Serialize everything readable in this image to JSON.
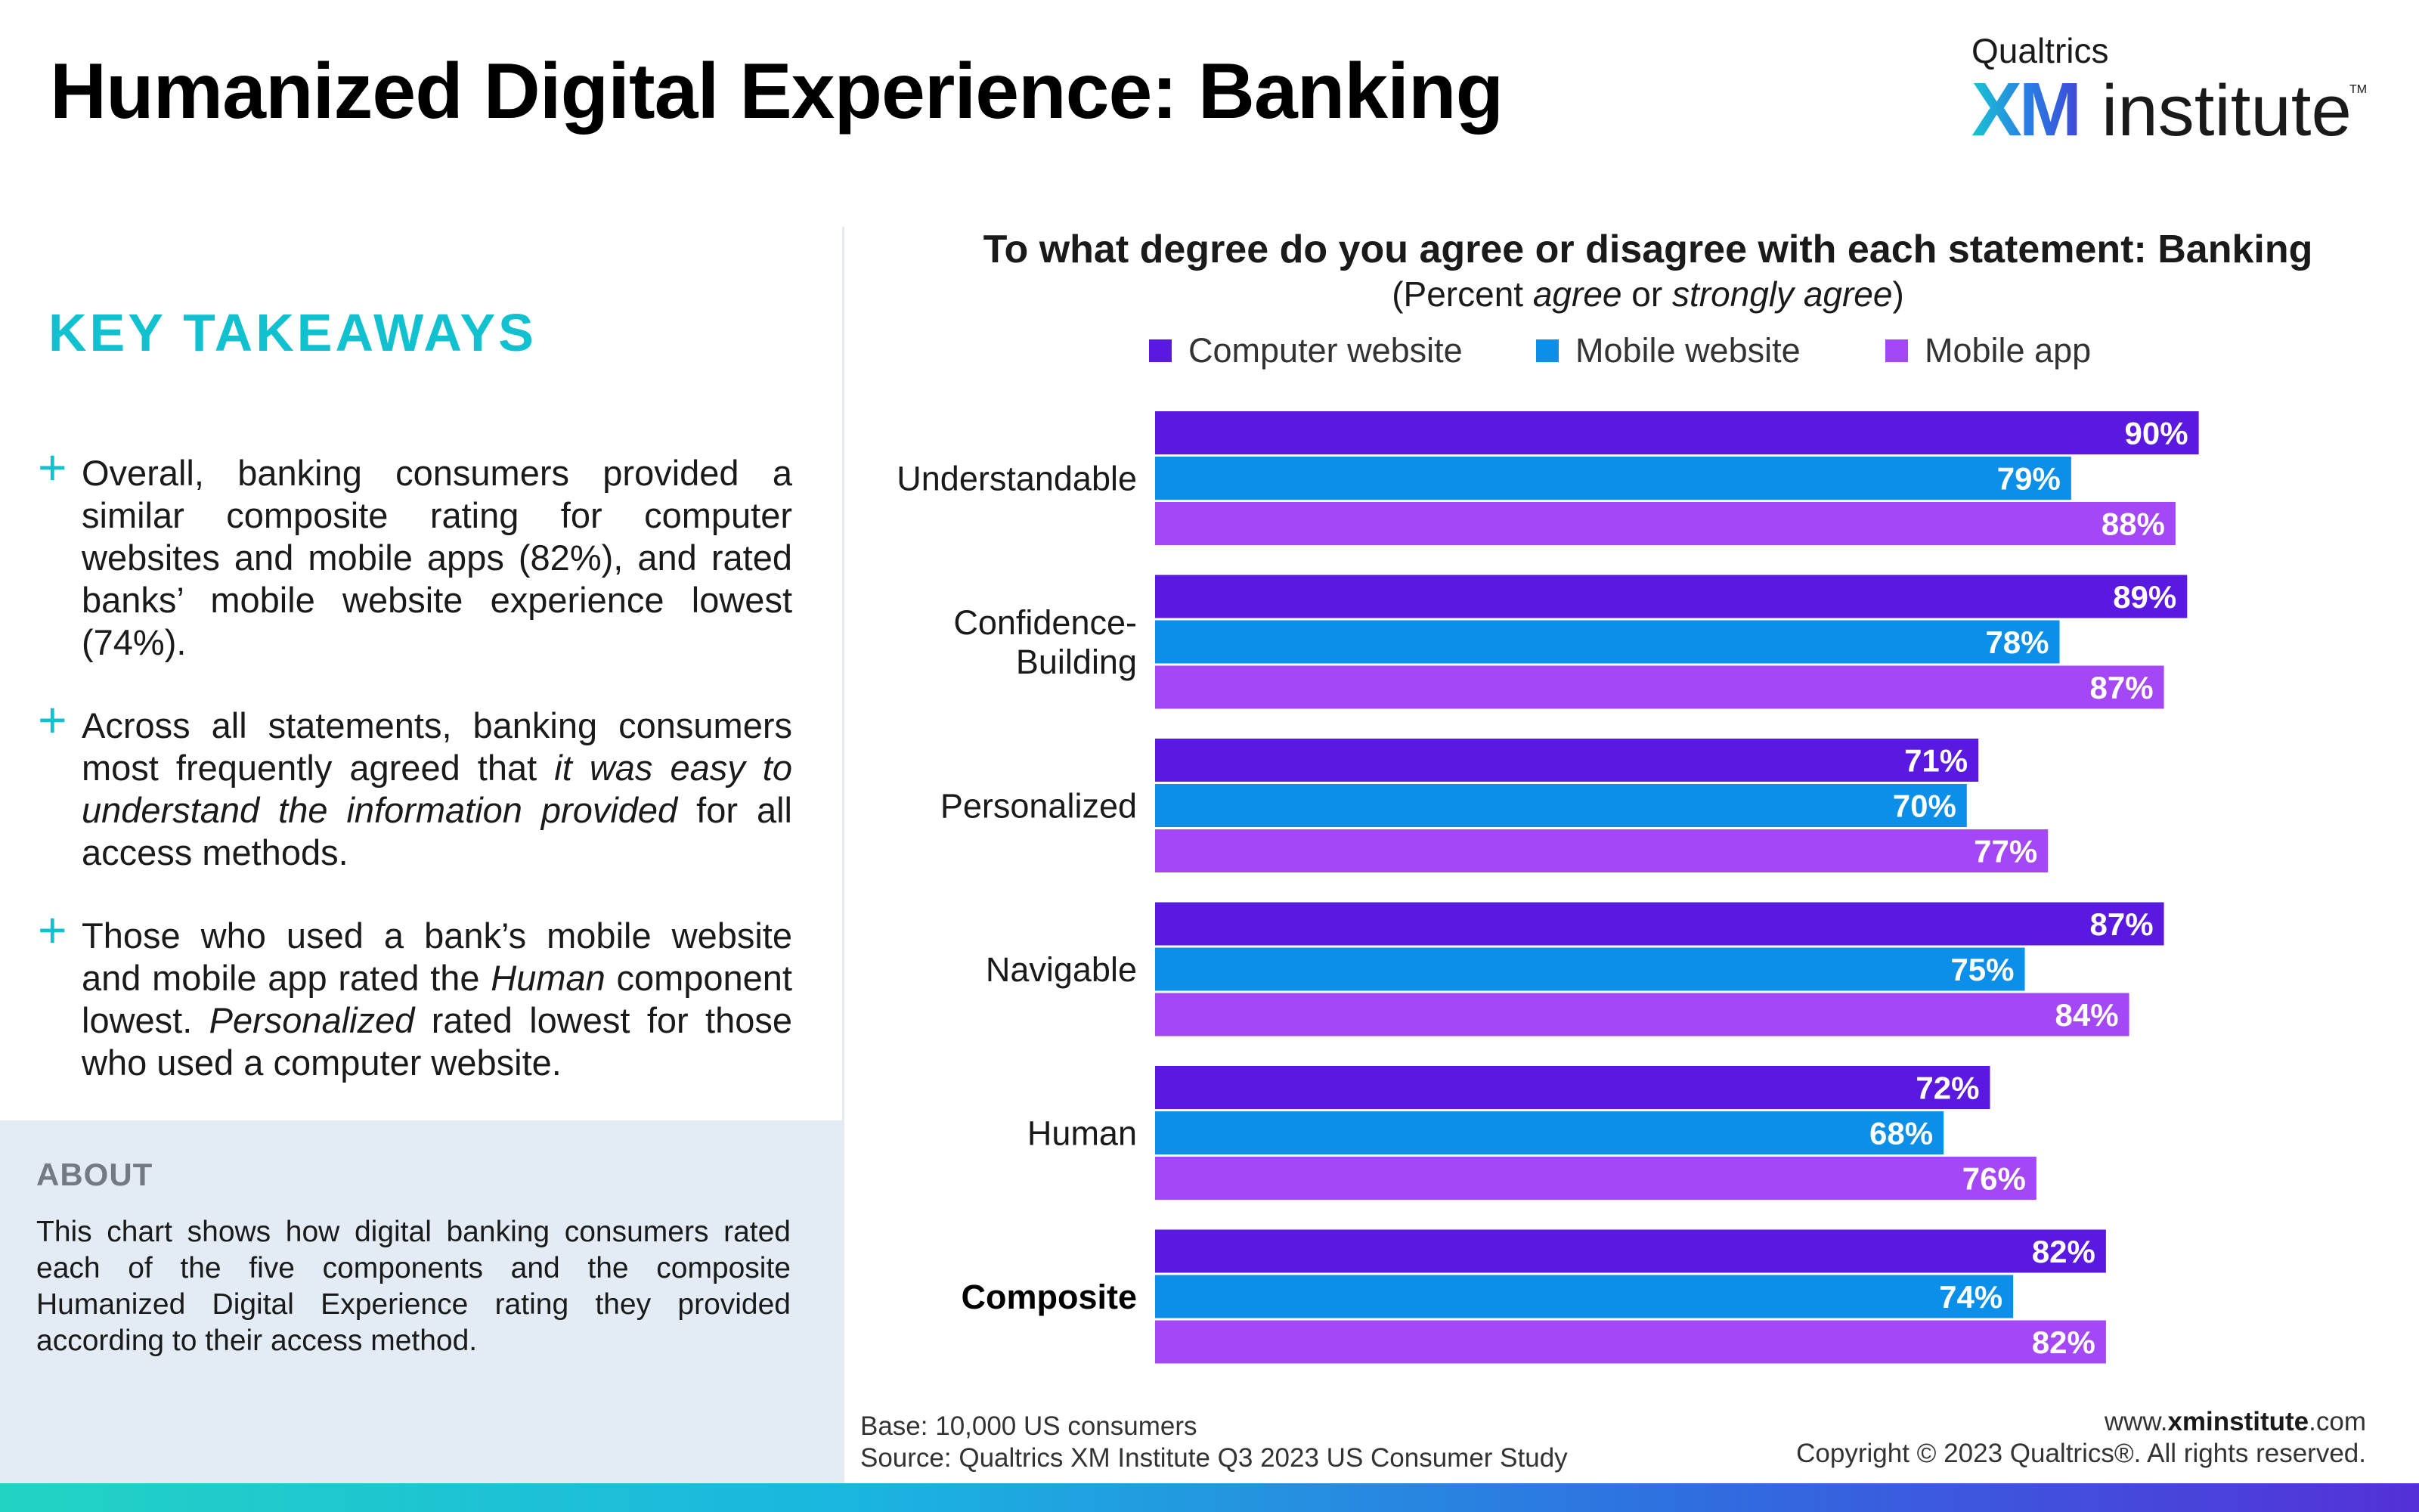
{
  "header": {
    "title": "Humanized Digital Experience: Banking",
    "logo": {
      "brand": "Qualtrics",
      "mark": "XM",
      "word": "institute",
      "tm": "TM"
    }
  },
  "takeaways": {
    "heading": "KEY TAKEAWAYS",
    "bullet_symbol": "+",
    "items": [
      [
        "Overall, banking consumers provided a similar composite rating for computer websites and mobile apps (82%), and rated banks’ mobile website experience lowest (74%)."
      ],
      [
        "Across all statements, banking consumers most frequently agreed that ",
        "it was easy to understand the information provided",
        " for all access methods."
      ],
      [
        "Those who used a bank’s mobile website and mobile app rated the ",
        "Human",
        " component lowest. ",
        "Personalized",
        " rated lowest for those who used a computer website."
      ]
    ]
  },
  "about": {
    "heading": "ABOUT",
    "text": "This chart shows how digital banking consumers rated each of the five components and the composite Humanized Digital Experience rating they provided according to their access method."
  },
  "chart_data": {
    "type": "bar",
    "orientation": "horizontal",
    "title": "To what degree do you agree or disagree with each statement: Banking",
    "subtitle": {
      "open": "(Percent ",
      "em1": "agree",
      "mid": " or ",
      "em2": "strongly agree",
      "close": ")"
    },
    "categories": [
      "Understandable",
      "Confidence-Building",
      "Personalized",
      "Navigable",
      "Human",
      "Composite"
    ],
    "category_lines": [
      [
        "Understandable"
      ],
      [
        "Confidence-",
        "Building"
      ],
      [
        "Personalized"
      ],
      [
        "Navigable"
      ],
      [
        "Human"
      ],
      [
        "Composite"
      ]
    ],
    "bold_category": "Composite",
    "series": [
      {
        "name": "Computer website",
        "color": "#5a19e0",
        "values": [
          90,
          89,
          71,
          87,
          72,
          82
        ]
      },
      {
        "name": "Mobile website",
        "color": "#0b8fe8",
        "values": [
          79,
          78,
          70,
          75,
          68,
          74
        ]
      },
      {
        "name": "Mobile app",
        "color": "#a447f5",
        "values": [
          88,
          87,
          77,
          84,
          76,
          82
        ]
      }
    ],
    "value_suffix": "%",
    "xlim": [
      0,
      100
    ],
    "legend_position": "top",
    "grid": false
  },
  "footer": {
    "base": "Base: 10,000 US consumers",
    "source": "Source: Qualtrics XM Institute Q3 2023 US Consumer Study",
    "url_prefix": "www.",
    "url_bold": "xminstitute",
    "url_suffix": ".com",
    "copyright": "Copyright © 2023 Qualtrics®. All rights reserved."
  }
}
